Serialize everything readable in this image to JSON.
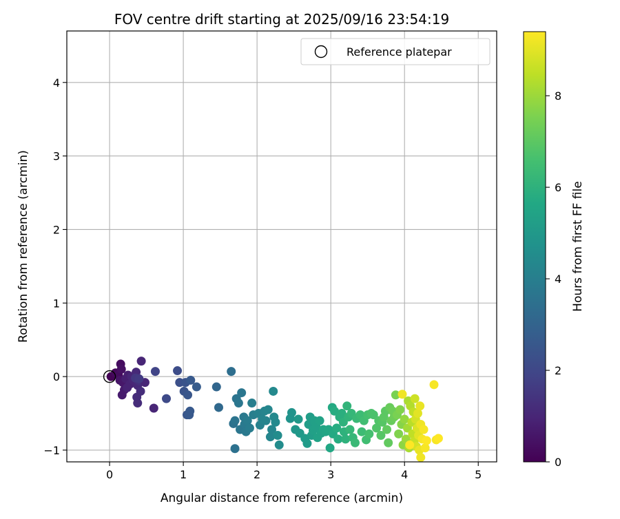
{
  "chart_data": {
    "type": "scatter",
    "title": "FOV centre drift starting at 2025/09/16 23:54:19",
    "xlabel": "Angular distance from reference (arcmin)",
    "ylabel": "Rotation from reference (arcmin)",
    "xlim": [
      -0.58,
      5.25
    ],
    "ylim": [
      -1.16,
      4.7
    ],
    "xticks": [
      0,
      1,
      2,
      3,
      4,
      5
    ],
    "yticks": [
      -1,
      0,
      1,
      2,
      3,
      4
    ],
    "grid": true,
    "legend": {
      "placement": "upper-right",
      "entries": [
        "Reference platepar"
      ]
    },
    "reference_point": {
      "x": 0,
      "y": 0,
      "label": "Reference platepar"
    },
    "colorbar": {
      "label": "Hours from first FF file",
      "min": 0,
      "max": 9.4,
      "ticks": [
        0,
        2,
        4,
        6,
        8
      ],
      "colormap": "viridis"
    },
    "points": [
      {
        "x": 0.02,
        "y": 0.0,
        "c": 0.05
      },
      {
        "x": 0.08,
        "y": 0.05,
        "c": 0.2
      },
      {
        "x": 0.12,
        "y": 0.02,
        "c": 0.3
      },
      {
        "x": 0.15,
        "y": 0.17,
        "c": 0.3
      },
      {
        "x": 0.16,
        "y": 0.1,
        "c": 0.4
      },
      {
        "x": 0.14,
        "y": -0.05,
        "c": 0.5
      },
      {
        "x": 0.18,
        "y": -0.08,
        "c": 0.6
      },
      {
        "x": 0.2,
        "y": -0.18,
        "c": 0.7
      },
      {
        "x": 0.17,
        "y": -0.25,
        "c": 0.7
      },
      {
        "x": 0.22,
        "y": -0.03,
        "c": 0.8
      },
      {
        "x": 0.25,
        "y": 0.02,
        "c": 0.8
      },
      {
        "x": 0.28,
        "y": -0.1,
        "c": 0.9
      },
      {
        "x": 0.24,
        "y": -0.15,
        "c": 0.9
      },
      {
        "x": 0.3,
        "y": 0.0,
        "c": 1.0
      },
      {
        "x": 0.32,
        "y": -0.05,
        "c": 1.0
      },
      {
        "x": 0.36,
        "y": 0.06,
        "c": 1.1
      },
      {
        "x": 0.38,
        "y": -0.12,
        "c": 1.1
      },
      {
        "x": 0.37,
        "y": -0.28,
        "c": 1.2
      },
      {
        "x": 0.38,
        "y": -0.36,
        "c": 1.2
      },
      {
        "x": 0.43,
        "y": 0.21,
        "c": 1.0
      },
      {
        "x": 0.42,
        "y": -0.2,
        "c": 1.2
      },
      {
        "x": 0.4,
        "y": -0.06,
        "c": 1.3
      },
      {
        "x": 0.48,
        "y": -0.08,
        "c": 1.0
      },
      {
        "x": 0.35,
        "y": -0.02,
        "c": 1.5
      },
      {
        "x": 0.4,
        "y": -0.03,
        "c": 1.6
      },
      {
        "x": 0.6,
        "y": -0.43,
        "c": 1.0
      },
      {
        "x": 0.62,
        "y": 0.07,
        "c": 1.9
      },
      {
        "x": 0.77,
        "y": -0.3,
        "c": 2.1
      },
      {
        "x": 0.92,
        "y": 0.08,
        "c": 2.2
      },
      {
        "x": 0.95,
        "y": -0.08,
        "c": 2.3
      },
      {
        "x": 1.01,
        "y": -0.2,
        "c": 2.4
      },
      {
        "x": 1.03,
        "y": -0.08,
        "c": 2.4
      },
      {
        "x": 1.06,
        "y": -0.25,
        "c": 2.5
      },
      {
        "x": 1.05,
        "y": -0.52,
        "c": 2.5
      },
      {
        "x": 1.08,
        "y": -0.52,
        "c": 2.6
      },
      {
        "x": 1.09,
        "y": -0.47,
        "c": 2.6
      },
      {
        "x": 1.1,
        "y": -0.05,
        "c": 2.6
      },
      {
        "x": 1.18,
        "y": -0.14,
        "c": 2.7
      },
      {
        "x": 1.45,
        "y": -0.14,
        "c": 3.1
      },
      {
        "x": 1.48,
        "y": -0.42,
        "c": 3.2
      },
      {
        "x": 1.65,
        "y": 0.07,
        "c": 3.4
      },
      {
        "x": 1.68,
        "y": -0.64,
        "c": 3.5
      },
      {
        "x": 1.7,
        "y": -0.98,
        "c": 3.5
      },
      {
        "x": 1.7,
        "y": -0.6,
        "c": 3.6
      },
      {
        "x": 1.72,
        "y": -0.3,
        "c": 3.6
      },
      {
        "x": 1.75,
        "y": -0.36,
        "c": 3.7
      },
      {
        "x": 1.77,
        "y": -0.72,
        "c": 3.7
      },
      {
        "x": 1.79,
        "y": -0.22,
        "c": 3.7
      },
      {
        "x": 1.82,
        "y": -0.55,
        "c": 3.8
      },
      {
        "x": 1.83,
        "y": -0.65,
        "c": 3.8
      },
      {
        "x": 1.85,
        "y": -0.75,
        "c": 3.8
      },
      {
        "x": 1.87,
        "y": -0.6,
        "c": 3.9
      },
      {
        "x": 1.9,
        "y": -0.7,
        "c": 3.9
      },
      {
        "x": 1.93,
        "y": -0.36,
        "c": 4.0
      },
      {
        "x": 1.95,
        "y": -0.52,
        "c": 4.0
      },
      {
        "x": 2.02,
        "y": -0.5,
        "c": 4.1
      },
      {
        "x": 2.04,
        "y": -0.66,
        "c": 4.1
      },
      {
        "x": 2.07,
        "y": -0.58,
        "c": 4.2
      },
      {
        "x": 2.1,
        "y": -0.47,
        "c": 4.2
      },
      {
        "x": 2.12,
        "y": -0.6,
        "c": 4.2
      },
      {
        "x": 2.15,
        "y": -0.45,
        "c": 4.3
      },
      {
        "x": 2.18,
        "y": -0.82,
        "c": 4.3
      },
      {
        "x": 2.2,
        "y": -0.72,
        "c": 4.3
      },
      {
        "x": 2.22,
        "y": -0.2,
        "c": 4.4
      },
      {
        "x": 2.23,
        "y": -0.55,
        "c": 4.4
      },
      {
        "x": 2.25,
        "y": -0.62,
        "c": 4.4
      },
      {
        "x": 2.28,
        "y": -0.8,
        "c": 4.5
      },
      {
        "x": 2.3,
        "y": -0.93,
        "c": 4.5
      },
      {
        "x": 2.45,
        "y": -0.57,
        "c": 4.8
      },
      {
        "x": 2.47,
        "y": -0.49,
        "c": 4.8
      },
      {
        "x": 2.52,
        "y": -0.72,
        "c": 4.9
      },
      {
        "x": 2.56,
        "y": -0.58,
        "c": 5.0
      },
      {
        "x": 2.58,
        "y": -0.77,
        "c": 5.0
      },
      {
        "x": 2.65,
        "y": -0.84,
        "c": 5.1
      },
      {
        "x": 2.68,
        "y": -0.91,
        "c": 5.1
      },
      {
        "x": 2.7,
        "y": -0.65,
        "c": 5.2
      },
      {
        "x": 2.72,
        "y": -0.55,
        "c": 5.2
      },
      {
        "x": 2.74,
        "y": -0.8,
        "c": 5.2
      },
      {
        "x": 2.76,
        "y": -0.73,
        "c": 5.3
      },
      {
        "x": 2.78,
        "y": -0.6,
        "c": 5.3
      },
      {
        "x": 2.8,
        "y": -0.68,
        "c": 5.3
      },
      {
        "x": 2.82,
        "y": -0.83,
        "c": 5.4
      },
      {
        "x": 2.85,
        "y": -0.6,
        "c": 5.4
      },
      {
        "x": 2.87,
        "y": -0.77,
        "c": 5.4
      },
      {
        "x": 2.9,
        "y": -0.72,
        "c": 5.5
      },
      {
        "x": 2.93,
        "y": -0.75,
        "c": 5.5
      },
      {
        "x": 2.97,
        "y": -0.72,
        "c": 5.6
      },
      {
        "x": 2.99,
        "y": -0.97,
        "c": 5.6
      },
      {
        "x": 3.02,
        "y": -0.42,
        "c": 5.7
      },
      {
        "x": 3.03,
        "y": -0.78,
        "c": 5.7
      },
      {
        "x": 3.05,
        "y": -0.47,
        "c": 5.8
      },
      {
        "x": 3.08,
        "y": -0.7,
        "c": 5.8
      },
      {
        "x": 3.1,
        "y": -0.85,
        "c": 5.8
      },
      {
        "x": 3.12,
        "y": -0.55,
        "c": 5.9
      },
      {
        "x": 3.15,
        "y": -0.5,
        "c": 5.9
      },
      {
        "x": 3.17,
        "y": -0.62,
        "c": 6.0
      },
      {
        "x": 3.18,
        "y": -0.75,
        "c": 6.0
      },
      {
        "x": 3.2,
        "y": -0.85,
        "c": 6.0
      },
      {
        "x": 3.22,
        "y": -0.4,
        "c": 6.1
      },
      {
        "x": 3.24,
        "y": -0.55,
        "c": 6.1
      },
      {
        "x": 3.26,
        "y": -0.72,
        "c": 6.2
      },
      {
        "x": 3.28,
        "y": -0.5,
        "c": 6.2
      },
      {
        "x": 3.3,
        "y": -0.83,
        "c": 6.2
      },
      {
        "x": 3.33,
        "y": -0.9,
        "c": 6.3
      },
      {
        "x": 3.35,
        "y": -0.57,
        "c": 6.3
      },
      {
        "x": 3.4,
        "y": -0.52,
        "c": 6.4
      },
      {
        "x": 3.42,
        "y": -0.75,
        "c": 6.4
      },
      {
        "x": 3.45,
        "y": -0.6,
        "c": 6.5
      },
      {
        "x": 3.48,
        "y": -0.86,
        "c": 6.5
      },
      {
        "x": 3.5,
        "y": -0.52,
        "c": 6.6
      },
      {
        "x": 3.52,
        "y": -0.78,
        "c": 6.6
      },
      {
        "x": 3.55,
        "y": -0.5,
        "c": 6.7
      },
      {
        "x": 3.58,
        "y": -0.52,
        "c": 6.7
      },
      {
        "x": 3.62,
        "y": -0.7,
        "c": 6.8
      },
      {
        "x": 3.65,
        "y": -0.6,
        "c": 6.8
      },
      {
        "x": 3.68,
        "y": -0.8,
        "c": 6.9
      },
      {
        "x": 3.7,
        "y": -0.62,
        "c": 6.9
      },
      {
        "x": 3.72,
        "y": -0.55,
        "c": 7.0
      },
      {
        "x": 3.74,
        "y": -0.47,
        "c": 7.0
      },
      {
        "x": 3.76,
        "y": -0.72,
        "c": 7.1
      },
      {
        "x": 3.78,
        "y": -0.9,
        "c": 7.1
      },
      {
        "x": 3.8,
        "y": -0.42,
        "c": 7.2
      },
      {
        "x": 3.82,
        "y": -0.6,
        "c": 7.2
      },
      {
        "x": 3.84,
        "y": -0.47,
        "c": 7.3
      },
      {
        "x": 3.86,
        "y": -0.55,
        "c": 7.3
      },
      {
        "x": 3.88,
        "y": -0.25,
        "c": 7.5
      },
      {
        "x": 3.9,
        "y": -0.52,
        "c": 7.5
      },
      {
        "x": 3.92,
        "y": -0.78,
        "c": 7.6
      },
      {
        "x": 3.94,
        "y": -0.45,
        "c": 7.6
      },
      {
        "x": 3.96,
        "y": -0.65,
        "c": 7.7
      },
      {
        "x": 3.98,
        "y": -0.93,
        "c": 7.8
      },
      {
        "x": 3.97,
        "y": -0.24,
        "c": 9.2
      },
      {
        "x": 4.0,
        "y": -0.58,
        "c": 7.9
      },
      {
        "x": 4.02,
        "y": -0.85,
        "c": 8.0
      },
      {
        "x": 4.04,
        "y": -0.7,
        "c": 8.1
      },
      {
        "x": 4.05,
        "y": -0.33,
        "c": 8.2
      },
      {
        "x": 4.06,
        "y": -0.97,
        "c": 8.2
      },
      {
        "x": 4.08,
        "y": -0.4,
        "c": 8.3
      },
      {
        "x": 4.1,
        "y": -0.62,
        "c": 8.4
      },
      {
        "x": 4.11,
        "y": -0.78,
        "c": 8.5
      },
      {
        "x": 4.12,
        "y": -0.48,
        "c": 8.5
      },
      {
        "x": 4.13,
        "y": -0.88,
        "c": 8.6
      },
      {
        "x": 4.14,
        "y": -0.3,
        "c": 8.7
      },
      {
        "x": 4.15,
        "y": -0.58,
        "c": 8.8
      },
      {
        "x": 4.16,
        "y": -0.95,
        "c": 8.8
      },
      {
        "x": 4.17,
        "y": -0.7,
        "c": 8.9
      },
      {
        "x": 4.18,
        "y": -0.5,
        "c": 9.0
      },
      {
        "x": 4.19,
        "y": -0.8,
        "c": 9.0
      },
      {
        "x": 4.2,
        "y": -1.0,
        "c": 9.1
      },
      {
        "x": 4.21,
        "y": -0.4,
        "c": 9.1
      },
      {
        "x": 4.22,
        "y": -0.65,
        "c": 9.2
      },
      {
        "x": 4.22,
        "y": -1.1,
        "c": 9.2
      },
      {
        "x": 4.24,
        "y": -0.85,
        "c": 9.3
      },
      {
        "x": 4.26,
        "y": -0.72,
        "c": 9.3
      },
      {
        "x": 4.28,
        "y": -0.97,
        "c": 9.3
      },
      {
        "x": 4.3,
        "y": -0.87,
        "c": 9.4
      },
      {
        "x": 4.07,
        "y": -0.93,
        "c": 9.4
      },
      {
        "x": 4.4,
        "y": -0.11,
        "c": 9.3
      },
      {
        "x": 4.43,
        "y": -0.86,
        "c": 9.3
      },
      {
        "x": 4.46,
        "y": -0.84,
        "c": 9.4
      }
    ]
  }
}
